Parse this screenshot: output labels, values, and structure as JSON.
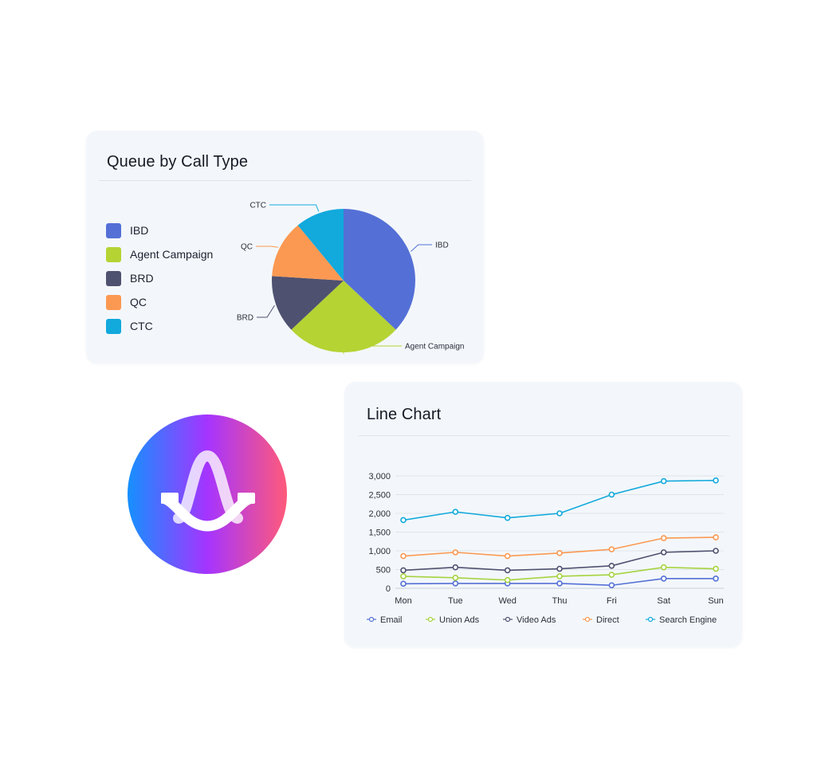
{
  "pie_card": {
    "title": "Queue by Call Type"
  },
  "line_card": {
    "title": "Line Chart"
  },
  "chart_data": [
    {
      "type": "pie",
      "title": "Queue by Call Type",
      "legend_position": "left",
      "slices": [
        {
          "label": "IBD",
          "value": 37,
          "color": "#5470d6"
        },
        {
          "label": "Agent Campaign",
          "value": 26,
          "color": "#b5d333"
        },
        {
          "label": "BRD",
          "value": 13,
          "color": "#4f5170"
        },
        {
          "label": "QC",
          "value": 13,
          "color": "#fb9952"
        },
        {
          "label": "CTC",
          "value": 11,
          "color": "#12a9dc"
        }
      ]
    },
    {
      "type": "line",
      "title": "Line Chart",
      "categories": [
        "Mon",
        "Tue",
        "Wed",
        "Thu",
        "Fri",
        "Sat",
        "Sun"
      ],
      "ylim": [
        0,
        3000
      ],
      "yticks": [
        "0",
        "500",
        "1,000",
        "1,500",
        "2,000",
        "2,500",
        "3,000"
      ],
      "grid": true,
      "legend_position": "bottom",
      "series": [
        {
          "name": "Email",
          "color": "#5470d6",
          "values": [
            120,
            130,
            130,
            130,
            80,
            260,
            260
          ]
        },
        {
          "name": "Union Ads",
          "color": "#a6d33f",
          "values": [
            320,
            280,
            220,
            320,
            360,
            560,
            520
          ]
        },
        {
          "name": "Video Ads",
          "color": "#4f5170",
          "values": [
            480,
            560,
            480,
            520,
            600,
            960,
            1000
          ]
        },
        {
          "name": "Direct",
          "color": "#fb9952",
          "values": [
            860,
            960,
            860,
            940,
            1040,
            1340,
            1360
          ]
        },
        {
          "name": "Search Engine",
          "color": "#12a9dc",
          "values": [
            1820,
            2040,
            1880,
            2000,
            2500,
            2860,
            2880
          ]
        }
      ]
    }
  ],
  "logo": {
    "gradient": [
      "#1590ff",
      "#a534ff",
      "#ff5a7a"
    ],
    "mark_color": "#ffffff"
  }
}
